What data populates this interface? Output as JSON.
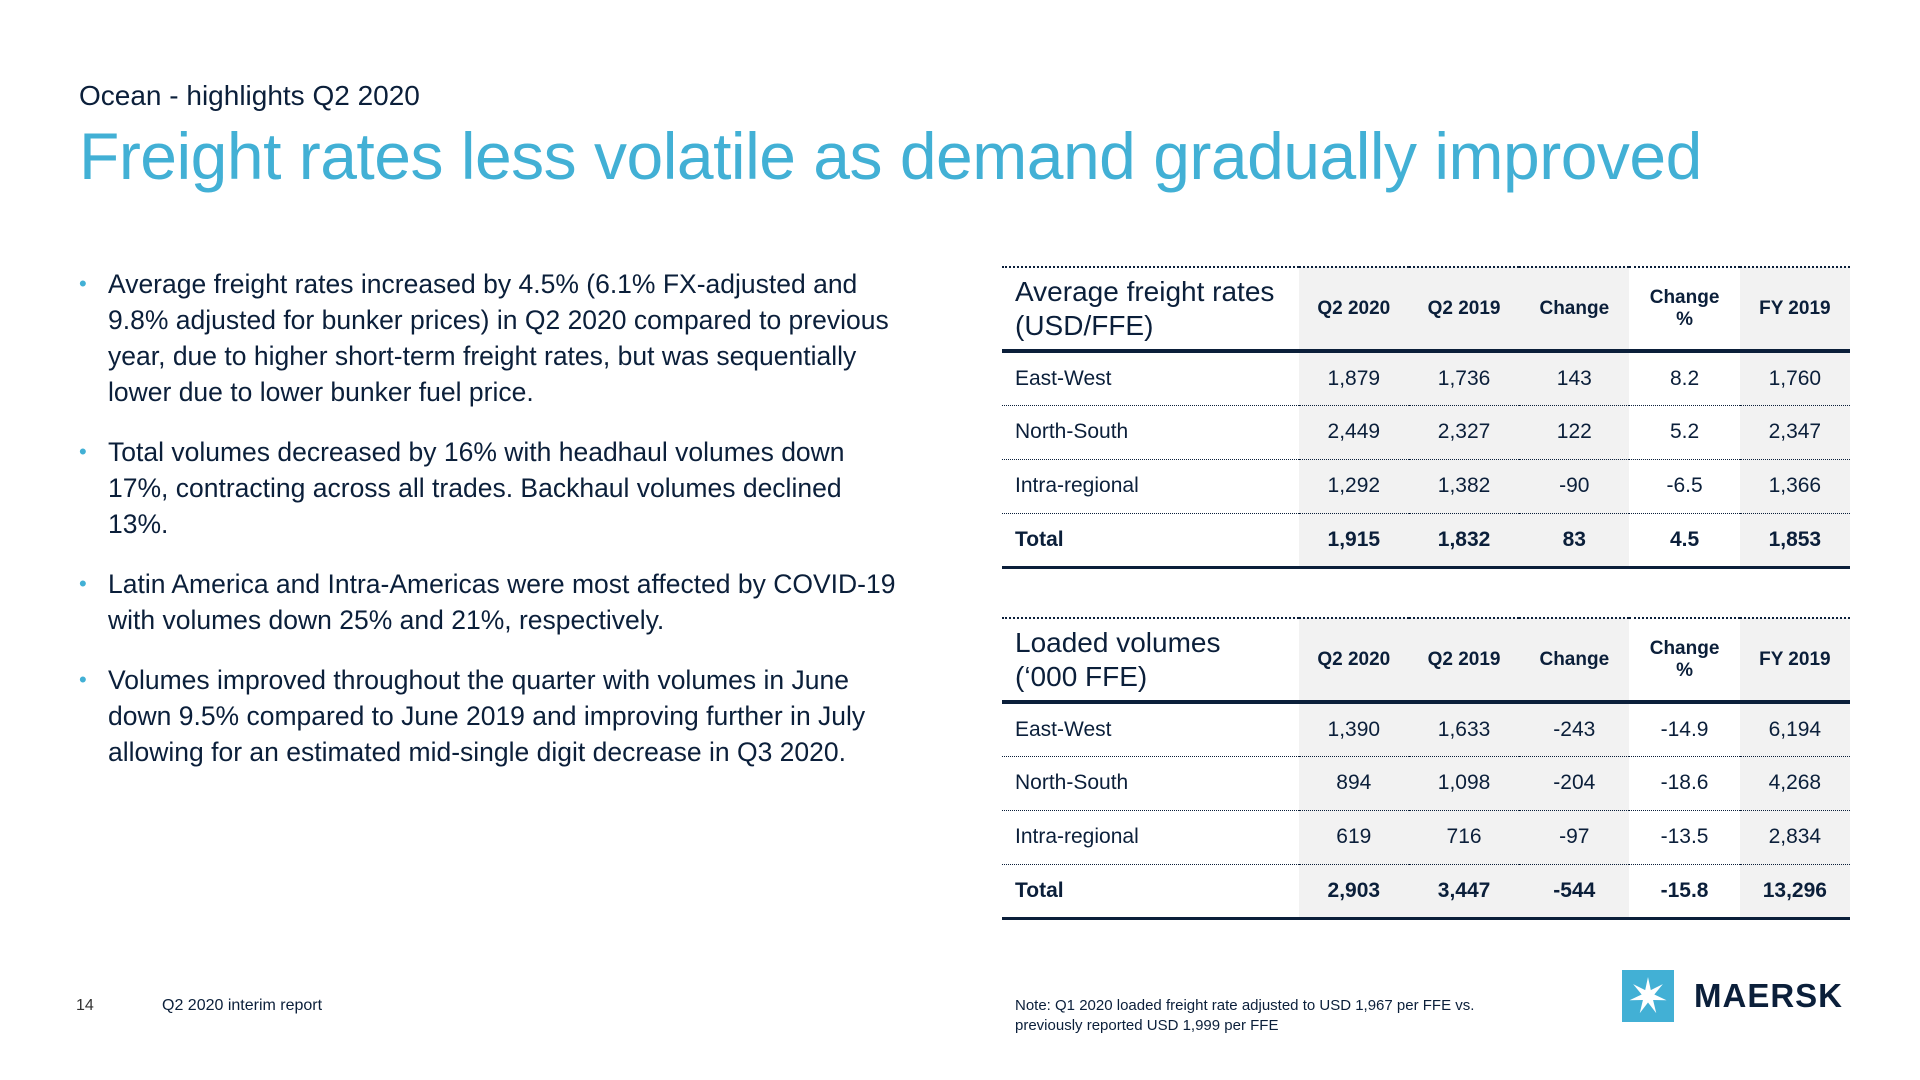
{
  "header": {
    "subtitle": "Ocean - highlights Q2 2020",
    "title": "Freight rates less volatile as demand gradually improved"
  },
  "bullets": [
    "Average freight rates increased by 4.5% (6.1% FX-adjusted and 9.8% adjusted for bunker prices) in Q2 2020 compared to previous year, due to higher short-term freight rates, but was sequentially lower due to lower bunker fuel price.",
    "Total volumes decreased by 16% with headhaul volumes down 17%, contracting across all trades. Backhaul volumes declined 13%.",
    "Latin America and Intra-Americas were most affected by COVID-19 with volumes down 25% and 21%, respectively.",
    "Volumes improved throughout the quarter with volumes in June down 9.5% compared to June 2019 and improving further in July allowing for an estimated mid-single digit decrease in Q3 2020."
  ],
  "freight_table": {
    "title_line1": "Average freight rates",
    "title_line2": "(USD/FFE)",
    "columns": [
      "Q2 2020",
      "Q2 2019",
      "Change",
      "Change",
      "%",
      "FY 2019"
    ],
    "rows": [
      {
        "label": "East-West",
        "values": [
          "1,879",
          "1,736",
          "143",
          "8.2",
          "1,760"
        ]
      },
      {
        "label": "North-South",
        "values": [
          "2,449",
          "2,327",
          "122",
          "5.2",
          "2,347"
        ]
      },
      {
        "label": "Intra-regional",
        "values": [
          "1,292",
          "1,382",
          "-90",
          "-6.5",
          "1,366"
        ]
      },
      {
        "label": "Total",
        "values": [
          "1,915",
          "1,832",
          "83",
          "4.5",
          "1,853"
        ]
      }
    ]
  },
  "volume_table": {
    "title_line1": "Loaded volumes",
    "title_line2": "(‘000 FFE)",
    "columns": [
      "Q2 2020",
      "Q2 2019",
      "Change",
      "Change",
      "%",
      "FY 2019"
    ],
    "rows": [
      {
        "label": "East-West",
        "values": [
          "1,390",
          "1,633",
          "-243",
          "-14.9",
          "6,194"
        ]
      },
      {
        "label": "North-South",
        "values": [
          "894",
          "1,098",
          "-204",
          "-18.6",
          "4,268"
        ]
      },
      {
        "label": "Intra-regional",
        "values": [
          "619",
          "716",
          "-97",
          "-13.5",
          "2,834"
        ]
      },
      {
        "label": "Total",
        "values": [
          "2,903",
          "3,447",
          "-544",
          "-15.8",
          "13,296"
        ]
      }
    ]
  },
  "footer": {
    "page_number": "14",
    "report_name": "Q2 2020 interim report",
    "note_line1": "Note: Q1 2020 loaded freight rate adjusted to USD 1,967 per FFE vs.",
    "note_line2": "previously reported USD 1,999 per FFE",
    "logo_text": "MAERSK"
  },
  "colors": {
    "accent": "#42b0d5",
    "navy": "#0b1f3a",
    "shade": "#f2f2f2"
  },
  "icons": {
    "logo_mark": "seven-pointed-star-icon"
  }
}
